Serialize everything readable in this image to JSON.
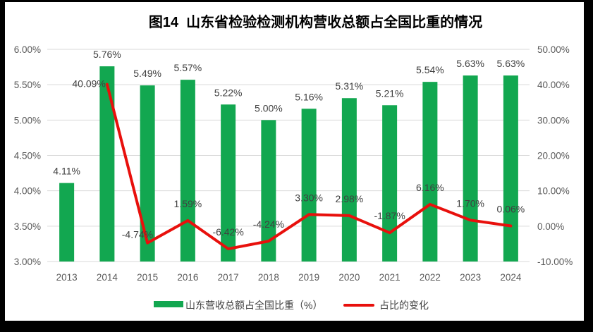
{
  "title": "图14  山东省检验检测机构营收总额占全国比重的情况",
  "chart_data": {
    "type": "bar+line combo",
    "title": "图14  山东省检验检测机构营收总额占全国比重的情况",
    "categories": [
      "2013",
      "2014",
      "2015",
      "2016",
      "2017",
      "2018",
      "2019",
      "2020",
      "2021",
      "2022",
      "2023",
      "2024"
    ],
    "grid": true,
    "gridline_color": "#d9d9d9",
    "legend_position": "bottom",
    "left_axis": {
      "min": 3.0,
      "max": 6.0,
      "ticks": [
        3.0,
        3.5,
        4.0,
        4.5,
        5.0,
        5.5,
        6.0
      ],
      "tick_labels": [
        "3.00%",
        "3.50%",
        "4.00%",
        "4.50%",
        "5.00%",
        "5.50%",
        "6.00%"
      ]
    },
    "right_axis": {
      "min": -10,
      "max": 50,
      "ticks": [
        -10,
        0,
        10,
        20,
        30,
        40,
        50
      ],
      "tick_labels": [
        "-10.00%",
        "0.00%",
        "10.00%",
        "20.00%",
        "30.00%",
        "40.00%",
        "50.00%"
      ]
    },
    "series": [
      {
        "name": "山东营收总额占全国比重（%）",
        "type": "bar",
        "axis": "left",
        "color": "#12a750",
        "values": [
          4.11,
          5.76,
          5.49,
          5.57,
          5.22,
          5.0,
          5.16,
          5.31,
          5.21,
          5.54,
          5.63,
          5.63
        ],
        "labels": [
          "4.11%",
          "5.76%",
          "5.49%",
          "5.57%",
          "5.22%",
          "5.00%",
          "5.16%",
          "5.31%",
          "5.21%",
          "5.54%",
          "5.63%",
          "5.63%"
        ]
      },
      {
        "name": "占比的变化",
        "type": "line",
        "axis": "right",
        "color": "#e8100c",
        "values": [
          null,
          40.09,
          -4.74,
          1.59,
          -6.42,
          -4.24,
          3.3,
          2.98,
          -1.87,
          6.16,
          1.7,
          0.06
        ],
        "labels": [
          null,
          "40.09%",
          "-4.74%",
          "1.59%",
          "-6.42%",
          "-4.24%",
          "3.30%",
          "2.98%",
          "-1.87%",
          "6.16%",
          "1.70%",
          "0.06%"
        ],
        "label_pos": [
          null,
          "left",
          "above-left",
          "above",
          "above",
          "above",
          "above",
          "above",
          "above",
          "above",
          "above",
          "above"
        ]
      }
    ]
  }
}
